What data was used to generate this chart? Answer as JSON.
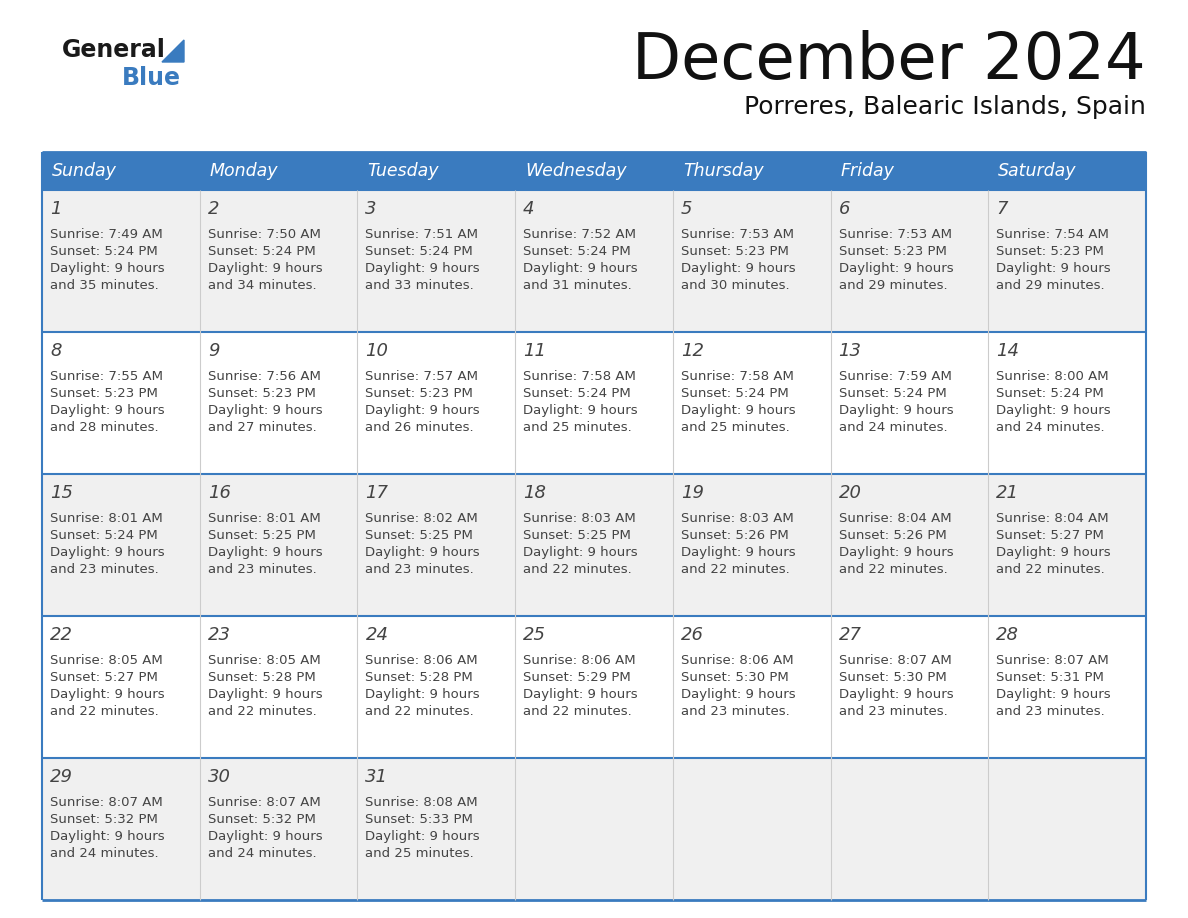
{
  "title": "December 2024",
  "subtitle": "Porreres, Balearic Islands, Spain",
  "header_bg_color": "#3a7bbf",
  "header_text_color": "#ffffff",
  "cell_bg_row0": "#f0f0f0",
  "cell_bg_row1": "#ffffff",
  "cell_bg_row2": "#f0f0f0",
  "cell_bg_row3": "#ffffff",
  "cell_bg_row4": "#f0f0f0",
  "border_color": "#3a7bbf",
  "text_color": "#444444",
  "days_of_week": [
    "Sunday",
    "Monday",
    "Tuesday",
    "Wednesday",
    "Thursday",
    "Friday",
    "Saturday"
  ],
  "weeks": [
    [
      {
        "day": 1,
        "sunrise": "7:49 AM",
        "sunset": "5:24 PM",
        "daylight": "9 hours",
        "daylight2": "and 35 minutes."
      },
      {
        "day": 2,
        "sunrise": "7:50 AM",
        "sunset": "5:24 PM",
        "daylight": "9 hours",
        "daylight2": "and 34 minutes."
      },
      {
        "day": 3,
        "sunrise": "7:51 AM",
        "sunset": "5:24 PM",
        "daylight": "9 hours",
        "daylight2": "and 33 minutes."
      },
      {
        "day": 4,
        "sunrise": "7:52 AM",
        "sunset": "5:24 PM",
        "daylight": "9 hours",
        "daylight2": "and 31 minutes."
      },
      {
        "day": 5,
        "sunrise": "7:53 AM",
        "sunset": "5:23 PM",
        "daylight": "9 hours",
        "daylight2": "and 30 minutes."
      },
      {
        "day": 6,
        "sunrise": "7:53 AM",
        "sunset": "5:23 PM",
        "daylight": "9 hours",
        "daylight2": "and 29 minutes."
      },
      {
        "day": 7,
        "sunrise": "7:54 AM",
        "sunset": "5:23 PM",
        "daylight": "9 hours",
        "daylight2": "and 29 minutes."
      }
    ],
    [
      {
        "day": 8,
        "sunrise": "7:55 AM",
        "sunset": "5:23 PM",
        "daylight": "9 hours",
        "daylight2": "and 28 minutes."
      },
      {
        "day": 9,
        "sunrise": "7:56 AM",
        "sunset": "5:23 PM",
        "daylight": "9 hours",
        "daylight2": "and 27 minutes."
      },
      {
        "day": 10,
        "sunrise": "7:57 AM",
        "sunset": "5:23 PM",
        "daylight": "9 hours",
        "daylight2": "and 26 minutes."
      },
      {
        "day": 11,
        "sunrise": "7:58 AM",
        "sunset": "5:24 PM",
        "daylight": "9 hours",
        "daylight2": "and 25 minutes."
      },
      {
        "day": 12,
        "sunrise": "7:58 AM",
        "sunset": "5:24 PM",
        "daylight": "9 hours",
        "daylight2": "and 25 minutes."
      },
      {
        "day": 13,
        "sunrise": "7:59 AM",
        "sunset": "5:24 PM",
        "daylight": "9 hours",
        "daylight2": "and 24 minutes."
      },
      {
        "day": 14,
        "sunrise": "8:00 AM",
        "sunset": "5:24 PM",
        "daylight": "9 hours",
        "daylight2": "and 24 minutes."
      }
    ],
    [
      {
        "day": 15,
        "sunrise": "8:01 AM",
        "sunset": "5:24 PM",
        "daylight": "9 hours",
        "daylight2": "and 23 minutes."
      },
      {
        "day": 16,
        "sunrise": "8:01 AM",
        "sunset": "5:25 PM",
        "daylight": "9 hours",
        "daylight2": "and 23 minutes."
      },
      {
        "day": 17,
        "sunrise": "8:02 AM",
        "sunset": "5:25 PM",
        "daylight": "9 hours",
        "daylight2": "and 23 minutes."
      },
      {
        "day": 18,
        "sunrise": "8:03 AM",
        "sunset": "5:25 PM",
        "daylight": "9 hours",
        "daylight2": "and 22 minutes."
      },
      {
        "day": 19,
        "sunrise": "8:03 AM",
        "sunset": "5:26 PM",
        "daylight": "9 hours",
        "daylight2": "and 22 minutes."
      },
      {
        "day": 20,
        "sunrise": "8:04 AM",
        "sunset": "5:26 PM",
        "daylight": "9 hours",
        "daylight2": "and 22 minutes."
      },
      {
        "day": 21,
        "sunrise": "8:04 AM",
        "sunset": "5:27 PM",
        "daylight": "9 hours",
        "daylight2": "and 22 minutes."
      }
    ],
    [
      {
        "day": 22,
        "sunrise": "8:05 AM",
        "sunset": "5:27 PM",
        "daylight": "9 hours",
        "daylight2": "and 22 minutes."
      },
      {
        "day": 23,
        "sunrise": "8:05 AM",
        "sunset": "5:28 PM",
        "daylight": "9 hours",
        "daylight2": "and 22 minutes."
      },
      {
        "day": 24,
        "sunrise": "8:06 AM",
        "sunset": "5:28 PM",
        "daylight": "9 hours",
        "daylight2": "and 22 minutes."
      },
      {
        "day": 25,
        "sunrise": "8:06 AM",
        "sunset": "5:29 PM",
        "daylight": "9 hours",
        "daylight2": "and 22 minutes."
      },
      {
        "day": 26,
        "sunrise": "8:06 AM",
        "sunset": "5:30 PM",
        "daylight": "9 hours",
        "daylight2": "and 23 minutes."
      },
      {
        "day": 27,
        "sunrise": "8:07 AM",
        "sunset": "5:30 PM",
        "daylight": "9 hours",
        "daylight2": "and 23 minutes."
      },
      {
        "day": 28,
        "sunrise": "8:07 AM",
        "sunset": "5:31 PM",
        "daylight": "9 hours",
        "daylight2": "and 23 minutes."
      }
    ],
    [
      {
        "day": 29,
        "sunrise": "8:07 AM",
        "sunset": "5:32 PM",
        "daylight": "9 hours",
        "daylight2": "and 24 minutes."
      },
      {
        "day": 30,
        "sunrise": "8:07 AM",
        "sunset": "5:32 PM",
        "daylight": "9 hours",
        "daylight2": "and 24 minutes."
      },
      {
        "day": 31,
        "sunrise": "8:08 AM",
        "sunset": "5:33 PM",
        "daylight": "9 hours",
        "daylight2": "and 25 minutes."
      },
      null,
      null,
      null,
      null
    ]
  ]
}
